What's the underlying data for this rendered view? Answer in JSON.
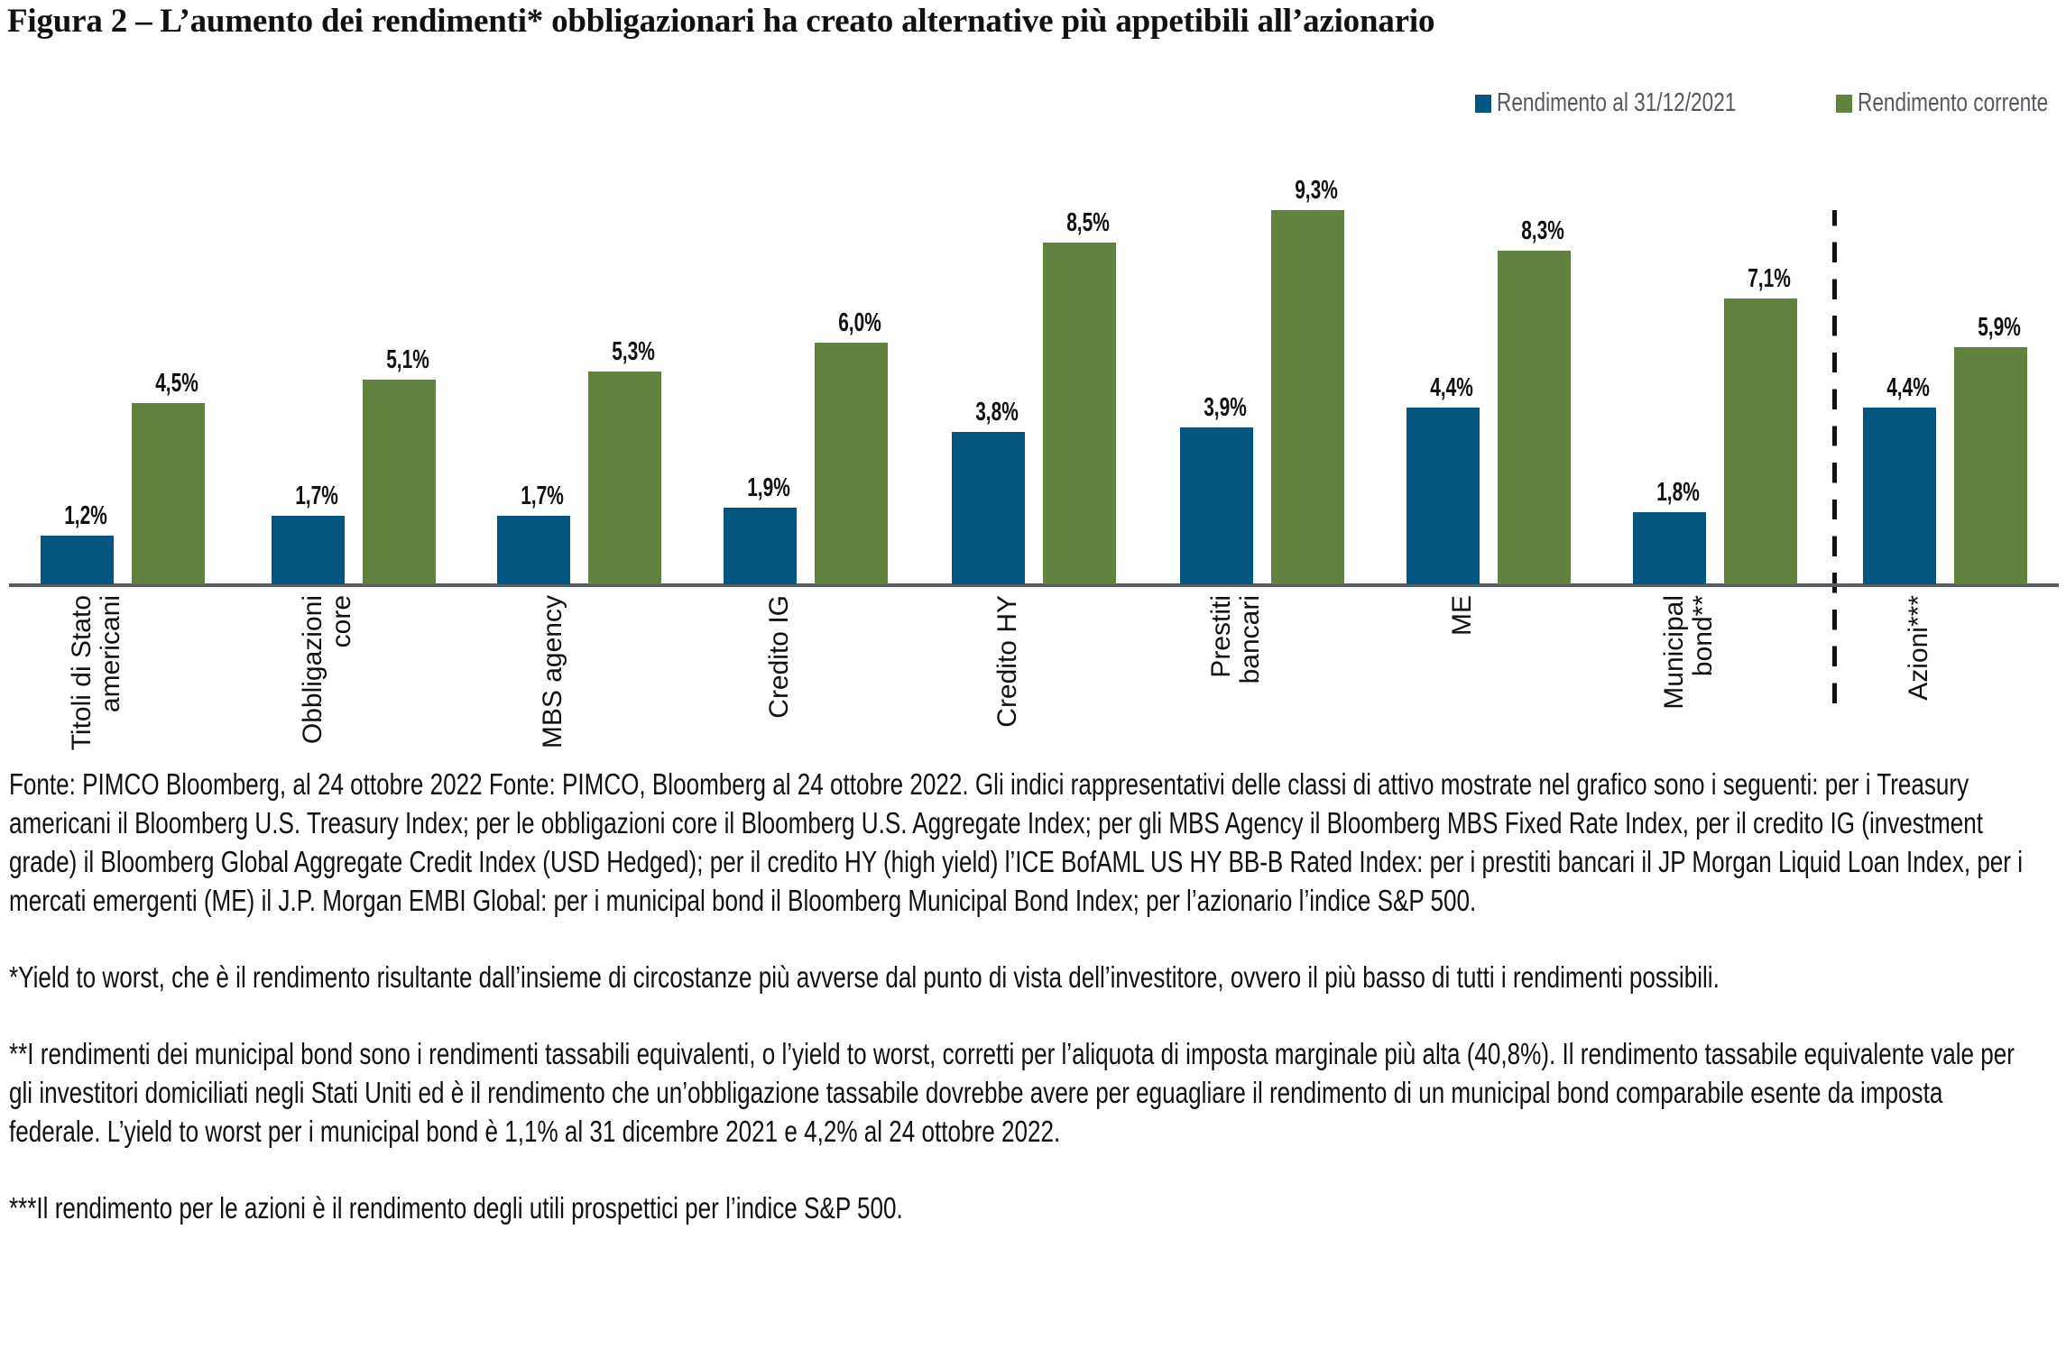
{
  "title": "Figura 2 – L’aumento dei rendimenti* obbligazionari ha creato alternative più appetibili all’azionario",
  "legend": [
    {
      "label": "Rendimento al 31/12/2021",
      "color": "#02567f"
    },
    {
      "label": "Rendimento corrente",
      "color": "#62803e"
    }
  ],
  "chart_data": {
    "type": "bar",
    "title": "Figura 2 – L’aumento dei rendimenti* obbligazionari ha creato alternative più appetibili all’azionario",
    "xlabel": "",
    "ylabel": "",
    "ylim": [
      0,
      10
    ],
    "grid": false,
    "legend_position": "top-right",
    "categories": [
      "Titoli di Stato americani",
      "Obbligazioni core",
      "MBS agency",
      "Credito IG",
      "Credito HY",
      "Prestiti bancari",
      "ME",
      "Municipal bond**",
      "Azioni***"
    ],
    "series": [
      {
        "name": "Rendimento al 31/12/2021",
        "color": "#02567f",
        "values": [
          1.2,
          1.7,
          1.7,
          1.9,
          3.8,
          3.9,
          4.4,
          1.8,
          4.4
        ]
      },
      {
        "name": "Rendimento corrente",
        "color": "#62803e",
        "values": [
          4.5,
          5.1,
          5.3,
          6.0,
          8.5,
          9.3,
          8.3,
          7.1,
          5.9
        ]
      }
    ],
    "annotations": [
      "Dashed vertical separator between Municipal bond** and Azioni***"
    ]
  },
  "categories": [
    {
      "label": "Titoli di Stato\namericani",
      "blue": "1,2%",
      "green": "4,5%"
    },
    {
      "label": "Obbligazioni\ncore",
      "blue": "1,7%",
      "green": "5,1%"
    },
    {
      "label": "MBS agency",
      "blue": "1,7%",
      "green": "5,3%"
    },
    {
      "label": "Credito IG",
      "blue": "1,9%",
      "green": "6,0%"
    },
    {
      "label": "Credito HY",
      "blue": "3,8%",
      "green": "8,5%"
    },
    {
      "label": "Prestiti\nbancari",
      "blue": "3,9%",
      "green": "9,3%"
    },
    {
      "label": "ME",
      "blue": "4,4%",
      "green": "8,3%"
    },
    {
      "label": "Municipal\nbond**",
      "blue": "1,8%",
      "green": "7,1%"
    },
    {
      "label": "Azioni***",
      "blue": "4,4%",
      "green": "5,9%"
    }
  ],
  "notes": {
    "source": "Fonte: PIMCO Bloomberg, al 24 ottobre 2022 Fonte: PIMCO, Bloomberg al 24 ottobre 2022. Gli indici rappresentativi delle classi di attivo mostrate nel grafico sono i seguenti: per i Treasury americani il Bloomberg U.S.  Treasury Index; per le obbligazioni core il Bloomberg U.S. Aggregate Index; per gli MBS Agency il Bloomberg MBS Fixed Rate Index, per il credito IG (investment grade) il Bloomberg Global Aggregate Credit Index (USD Hedged); per il credito HY (high yield) l’ICE BofAML US HY BB-B Rated Index: per i prestiti bancari il JP Morgan Liquid Loan Index, per i mercati emergenti (ME) il J.P. Morgan EMBI Global: per i municipal bond il Bloomberg Municipal Bond Index; per l’azionario l’indice S&P 500.",
    "note1": "*Yield to worst, che è il rendimento risultante dall’insieme di circostanze più avverse dal punto di vista dell’investitore, ovvero il più basso di tutti i rendimenti possibili.",
    "note2": "**I rendimenti dei municipal bond sono i rendimenti tassabili equivalenti, o l’yield to worst, corretti per l’aliquota di imposta marginale più alta (40,8%). Il rendimento tassabile equivalente vale per gli investitori domiciliati negli Stati Uniti ed è il rendimento che un’obbligazione tassabile dovrebbe avere per eguagliare il rendimento di un municipal bond comparabile esente da imposta federale. L’yield to worst per i municipal bond è 1,1% al 31 dicembre 2021 e 4,2% al 24 ottobre 2022.",
    "note3": "***Il rendimento per le azioni è il rendimento degli utili prospettici per l’indice S&P 500."
  }
}
